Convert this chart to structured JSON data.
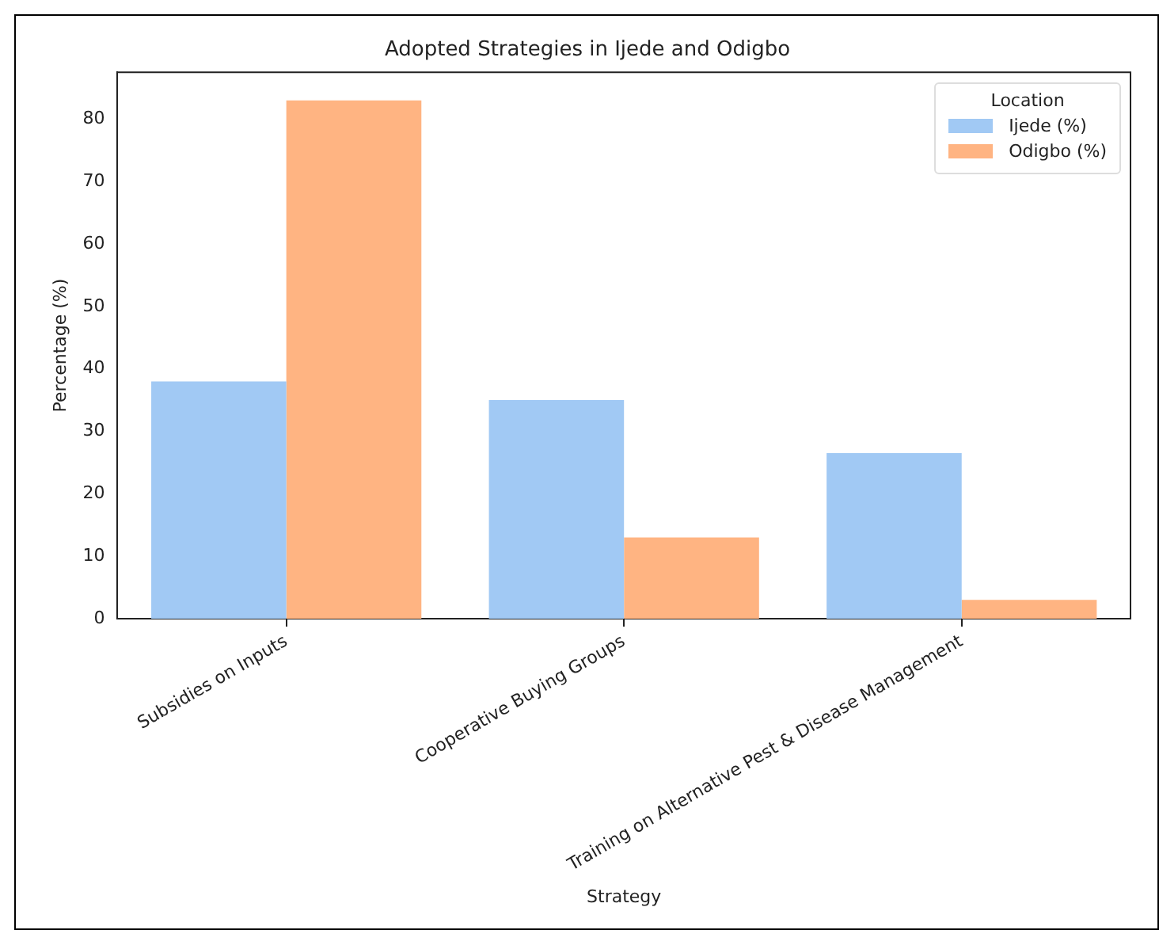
{
  "chart_data": {
    "type": "bar",
    "title": "Adopted Strategies in Ijede and Odigbo",
    "xlabel": "Strategy",
    "ylabel": "Percentage (%)",
    "legend_title": "Location",
    "categories": [
      "Subsidies on Inputs",
      "Cooperative Buying Groups",
      "Training on Alternative Pest & Disease Management"
    ],
    "series": [
      {
        "name": "Ijede (%)",
        "color": "#a1c9f4",
        "values": [
          38,
          35,
          26.5
        ]
      },
      {
        "name": "Odigbo (%)",
        "color": "#ffb482",
        "values": [
          83,
          13,
          3
        ]
      }
    ],
    "ylim": [
      0,
      87.5
    ],
    "yticks": [
      0,
      10,
      20,
      30,
      40,
      50,
      60,
      70,
      80
    ],
    "grid": false,
    "legend": "top right"
  }
}
